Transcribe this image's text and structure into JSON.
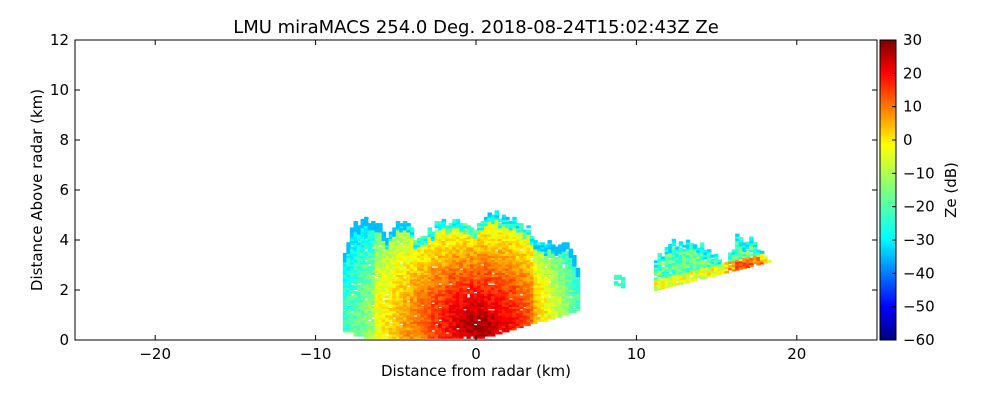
{
  "chart_data": {
    "type": "heatmap",
    "title": "LMU miraMACS 254.0 Deg. 2018-08-24T15:02:43Z  Ze",
    "xlabel": "Distance from radar (km)",
    "ylabel": "Distance Above radar  (km)",
    "xlim": [
      -25,
      25
    ],
    "ylim": [
      0,
      12
    ],
    "xticks": [
      -20,
      -10,
      0,
      10,
      20
    ],
    "xtick_labels": [
      "−20",
      "−10",
      "0",
      "10",
      "20"
    ],
    "yticks": [
      0,
      2,
      4,
      6,
      8,
      10,
      12
    ],
    "ytick_labels": [
      "0",
      "2",
      "4",
      "6",
      "8",
      "10",
      "12"
    ],
    "colorbar": {
      "label": "Ze (dB)",
      "colormap": "jet",
      "range": [
        -60,
        30
      ],
      "ticks": [
        30,
        20,
        10,
        0,
        -10,
        -20,
        -30,
        -40,
        -50,
        -60
      ],
      "tick_labels": [
        "30",
        "20",
        "10",
        "0",
        "−10",
        "−20",
        "−30",
        "−40",
        "−50",
        "−60"
      ]
    },
    "echo_regions": [
      {
        "name": "main-cloud",
        "x_range_km": [
          -8.3,
          6.3
        ],
        "z_range_km": [
          0.0,
          5.2
        ],
        "ze_range_db": [
          -30,
          28
        ],
        "top_km": [
          [
            -8.2,
            3.6
          ],
          [
            -7.8,
            4.5
          ],
          [
            -7.2,
            4.9
          ],
          [
            -6.3,
            4.7
          ],
          [
            -5.6,
            4.1
          ],
          [
            -4.7,
            4.9
          ],
          [
            -3.8,
            4.0
          ],
          [
            -2.8,
            4.5
          ],
          [
            -1.6,
            4.8
          ],
          [
            -0.3,
            4.4
          ],
          [
            0.6,
            5.1
          ],
          [
            1.8,
            4.9
          ],
          [
            2.9,
            4.5
          ],
          [
            3.7,
            4.0
          ],
          [
            4.7,
            3.8
          ],
          [
            5.6,
            3.7
          ],
          [
            6.2,
            3.0
          ]
        ]
      },
      {
        "name": "isolated-echo",
        "x_range_km": [
          8.6,
          9.1
        ],
        "z_range_km": [
          2.1,
          2.6
        ],
        "ze_range_db": [
          -25,
          -15
        ]
      },
      {
        "name": "far-cloud",
        "x_range_km": [
          11.1,
          18.2
        ],
        "z_range_km": [
          2.0,
          4.1
        ],
        "ze_range_db": [
          -30,
          15
        ],
        "top_km": [
          [
            11.1,
            3.1
          ],
          [
            12.0,
            3.8
          ],
          [
            13.3,
            3.9
          ],
          [
            14.4,
            3.6
          ],
          [
            15.4,
            3.0
          ],
          [
            16.2,
            4.1
          ],
          [
            17.1,
            3.9
          ],
          [
            18.2,
            3.2
          ]
        ]
      }
    ],
    "peak_reflectivity_db": 28,
    "peak_location_km": [
      0,
      0.6
    ]
  },
  "colors": {
    "axis": "#000000",
    "background": "#ffffff"
  }
}
